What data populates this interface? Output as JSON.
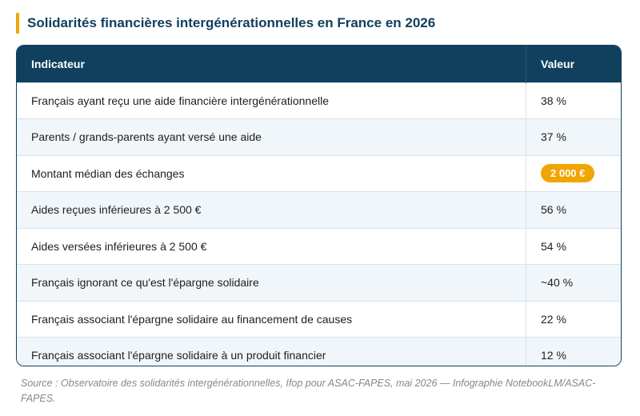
{
  "title": "Solidarités financières intergénérationnelles en France en 2026",
  "table": {
    "headers": [
      "Indicateur",
      "Valeur"
    ],
    "rows": [
      {
        "indicator": "Français ayant reçu une aide financière intergénérationnelle",
        "value": "38 %"
      },
      {
        "indicator": "Parents / grands-parents ayant versé une aide",
        "value": "37 %"
      },
      {
        "indicator": "Montant médian des échanges",
        "value": "2 000 €",
        "highlight": true
      },
      {
        "indicator": "Aides reçues inférieures à 2 500 €",
        "value": "56 %"
      },
      {
        "indicator": "Aides versées inférieures à 2 500 €",
        "value": "54 %"
      },
      {
        "indicator": "Français ignorant ce qu'est l'épargne solidaire",
        "value": "~40 %"
      },
      {
        "indicator": "Français associant l'épargne solidaire au financement de causes",
        "value": "22 %"
      },
      {
        "indicator": "Français associant l'épargne solidaire à un produit financier",
        "value": "12 %"
      }
    ]
  },
  "source": "Source : Observatoire des solidarités intergénérationnelles, Ifop pour ASAC-FAPES, mai 2026 — Infographie NotebookLM/ASAC-FAPES.",
  "colors": {
    "header_bg": "#10405e",
    "accent": "#f0a500",
    "row_alt": "#f1f6fa"
  }
}
